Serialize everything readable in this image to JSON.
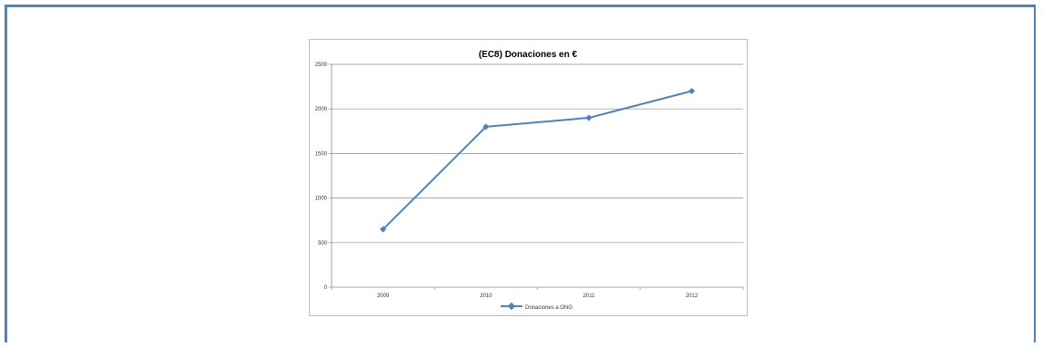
{
  "chart_data": {
    "type": "line",
    "title": "(EC8) Donaciones en €",
    "categories": [
      "2009",
      "2010",
      "2011",
      "2012"
    ],
    "series": [
      {
        "name": "Donaciones a ONG",
        "values": [
          650,
          1800,
          1900,
          2200
        ]
      }
    ],
    "ylim": [
      0,
      2500
    ],
    "yticks": [
      0,
      500,
      1000,
      1500,
      2000,
      2500
    ],
    "grid": true,
    "legend": "bottom",
    "color": "#4f81bd"
  }
}
